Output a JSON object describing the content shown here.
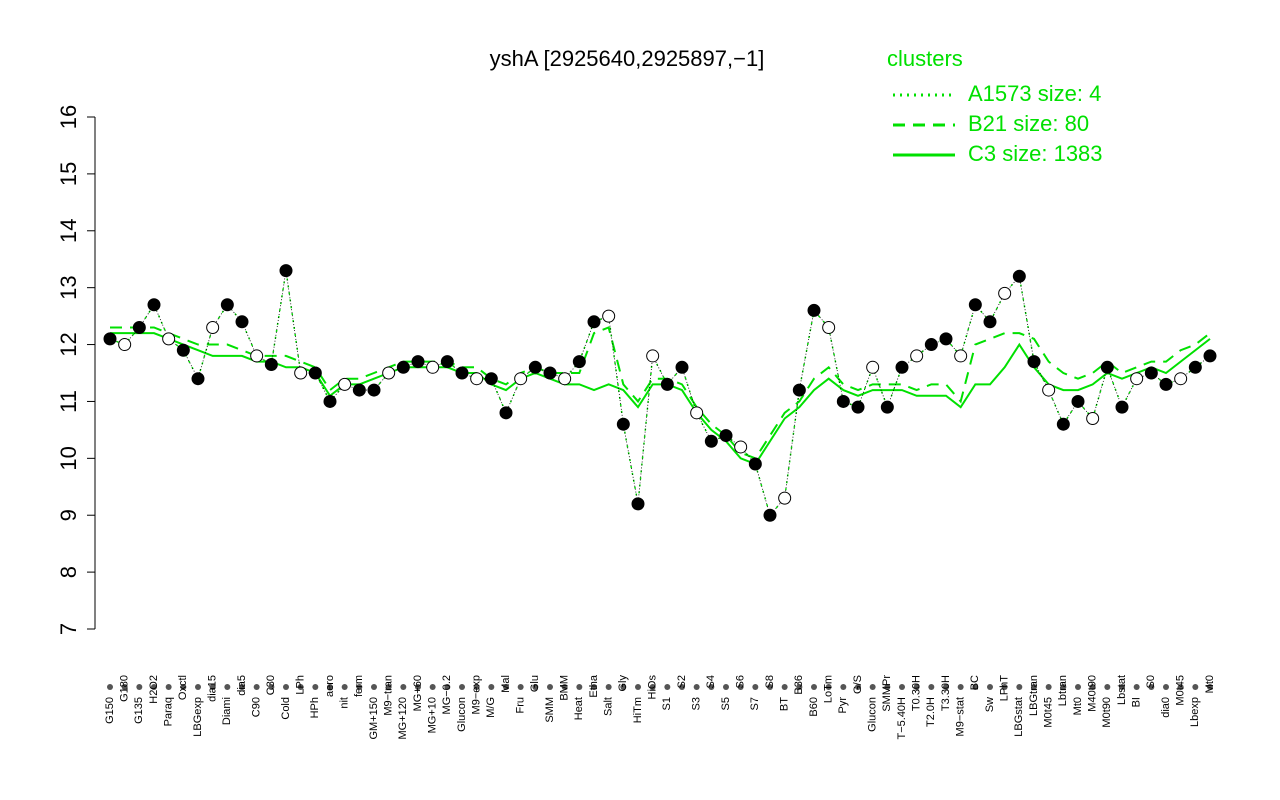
{
  "chart_data": {
    "type": "line",
    "title": "yshA [2925640,2925897,−1]",
    "legend_title": "clusters",
    "legend_position": "top-right",
    "ylim": [
      7,
      16
    ],
    "yticks": [
      7,
      8,
      9,
      10,
      11,
      12,
      13,
      14,
      15,
      16
    ],
    "categories": [
      "G150",
      "G180",
      "G135",
      "H2O2",
      "Paraq",
      "Oxctl",
      "LBGexp",
      "dia15",
      "Diami",
      "dia5",
      "C90",
      "C30",
      "Cold",
      "LPh",
      "HPh",
      "aero",
      "nit",
      "ferm",
      "GM+150",
      "M9−tran",
      "MG+120",
      "MG+60",
      "MG+10",
      "MG−0.2",
      "Glucon",
      "M9−exp",
      "M/G",
      "Mal",
      "Fru",
      "Glu",
      "SMM",
      "BMM",
      "Heat",
      "Etha",
      "Salt",
      "Gly",
      "HiTm",
      "HiOs",
      "S1",
      "S2",
      "S3",
      "S4",
      "S5",
      "S6",
      "S7",
      "S8",
      "BT",
      "B36",
      "B60",
      "LoTm",
      "Pyr",
      "G/S",
      "Glucon",
      "SMMPr",
      "T−5.40H",
      "T0.30H",
      "T2.0H",
      "T3.30H",
      "M9−stat",
      "BC",
      "Sw",
      "LPhT",
      "LBGstat",
      "LBGtran",
      "M0t45",
      "Lbtran",
      "Mt0",
      "M40t90",
      "M0t90",
      "Lbstat",
      "BI",
      "S0",
      "dia0",
      "M0t45",
      "Lbexp",
      "Mt0"
    ],
    "values": [
      12.1,
      12.0,
      12.3,
      12.7,
      12.1,
      11.9,
      11.4,
      12.3,
      12.7,
      12.4,
      11.8,
      11.65,
      13.3,
      11.5,
      11.5,
      11.0,
      11.3,
      11.2,
      11.2,
      11.5,
      11.6,
      11.7,
      11.6,
      11.7,
      11.5,
      11.4,
      11.4,
      10.8,
      11.4,
      11.6,
      11.5,
      11.4,
      11.7,
      12.4,
      12.5,
      10.6,
      9.2,
      11.8,
      11.3,
      11.6,
      10.8,
      10.3,
      10.4,
      10.2,
      9.9,
      9.0,
      9.3,
      11.2,
      12.6,
      12.3,
      11.0,
      10.9,
      11.6,
      10.9,
      11.6,
      11.8,
      12.0,
      12.1,
      11.8,
      12.7,
      12.4,
      12.9,
      13.2,
      11.7,
      11.2,
      10.6,
      11.0,
      10.7,
      11.6,
      10.9,
      11.4,
      11.5,
      11.3,
      11.4,
      11.6,
      11.8
    ],
    "point_color": "#000000",
    "series": [
      {
        "name": "A1573 size: 4",
        "color": "#00e000",
        "dash": "dotted",
        "values": [
          12.1,
          12.0,
          12.3,
          12.7,
          12.1,
          11.9,
          11.4,
          12.3,
          12.7,
          12.4,
          11.8,
          11.65,
          13.3,
          11.5,
          11.5,
          11.0,
          11.3,
          11.2,
          11.2,
          11.5,
          11.6,
          11.7,
          11.6,
          11.7,
          11.5,
          11.4,
          11.4,
          10.8,
          11.4,
          11.6,
          11.5,
          11.4,
          11.7,
          12.4,
          12.5,
          10.6,
          9.2,
          11.8,
          11.3,
          11.6,
          10.8,
          10.3,
          10.4,
          10.2,
          9.9,
          9.0,
          9.3,
          11.2,
          12.6,
          12.3,
          11.0,
          10.9,
          11.6,
          10.9,
          11.6,
          11.8,
          12.0,
          12.1,
          11.8,
          12.7,
          12.4,
          12.9,
          13.2,
          11.7,
          11.2,
          10.6,
          11.0,
          10.7,
          11.6,
          10.9,
          11.4,
          11.5,
          11.3,
          11.4,
          11.6,
          11.8
        ]
      },
      {
        "name": "B21 size: 80",
        "color": "#00e000",
        "dash": "dashed",
        "values": [
          12.3,
          12.3,
          12.3,
          12.3,
          12.2,
          12.1,
          12.0,
          12.0,
          12.0,
          11.9,
          11.8,
          11.8,
          11.8,
          11.7,
          11.6,
          11.2,
          11.4,
          11.4,
          11.5,
          11.6,
          11.7,
          11.7,
          11.7,
          11.7,
          11.6,
          11.6,
          11.4,
          11.3,
          11.5,
          11.6,
          11.5,
          11.5,
          11.5,
          12.2,
          12.3,
          11.3,
          11.0,
          11.4,
          11.4,
          11.3,
          10.9,
          10.6,
          10.4,
          10.1,
          10.0,
          10.4,
          10.8,
          11.0,
          11.4,
          11.6,
          11.3,
          11.2,
          11.3,
          11.3,
          11.3,
          11.2,
          11.3,
          11.3,
          11.0,
          12.0,
          12.1,
          12.2,
          12.2,
          12.1,
          11.7,
          11.5,
          11.4,
          11.5,
          11.7,
          11.5,
          11.6,
          11.7,
          11.7,
          11.9,
          12.0,
          12.2
        ]
      },
      {
        "name": "C3 size: 1383",
        "color": "#00e000",
        "dash": "solid",
        "values": [
          12.2,
          12.2,
          12.2,
          12.2,
          12.1,
          12.0,
          11.9,
          11.8,
          11.8,
          11.8,
          11.7,
          11.7,
          11.6,
          11.6,
          11.5,
          11.1,
          11.3,
          11.3,
          11.4,
          11.5,
          11.6,
          11.6,
          11.6,
          11.6,
          11.5,
          11.5,
          11.3,
          11.2,
          11.4,
          11.5,
          11.4,
          11.3,
          11.3,
          11.2,
          11.3,
          11.2,
          10.9,
          11.3,
          11.3,
          11.2,
          10.8,
          10.5,
          10.3,
          10.0,
          9.9,
          10.3,
          10.7,
          10.9,
          11.2,
          11.4,
          11.2,
          11.1,
          11.2,
          11.2,
          11.2,
          11.1,
          11.1,
          11.1,
          10.9,
          11.3,
          11.3,
          11.6,
          12.0,
          11.6,
          11.3,
          11.2,
          11.2,
          11.3,
          11.5,
          11.4,
          11.5,
          11.6,
          11.5,
          11.7,
          11.9,
          12.1
        ]
      }
    ]
  }
}
